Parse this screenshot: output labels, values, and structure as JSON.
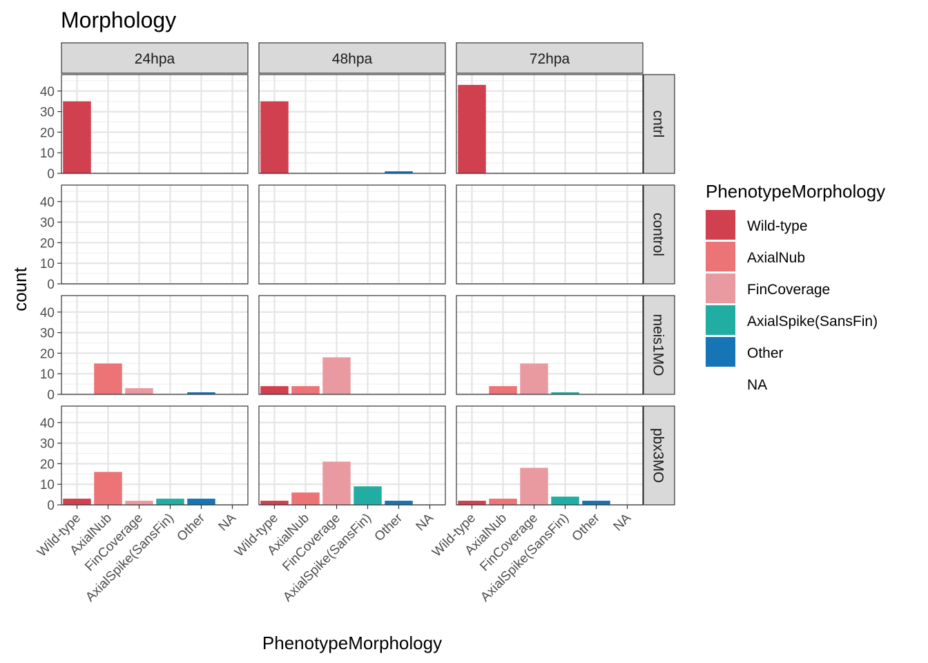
{
  "chart_data": {
    "type": "bar",
    "title": "Morphology",
    "xlabel": "PhenotypeMorphology",
    "ylabel": "count",
    "ylim": [
      0,
      48
    ],
    "yticks": [
      0,
      10,
      20,
      30,
      40
    ],
    "grid": true,
    "categories": [
      "Wild-type",
      "AxialNub",
      "FinCoverage",
      "AxialSpike(SansFin)",
      "Other",
      "NA"
    ],
    "column_facets": [
      "24hpa",
      "48hpa",
      "72hpa"
    ],
    "row_facets": [
      "cntrl",
      "control",
      "meis1MO",
      "pbx3MO"
    ],
    "colors": [
      "#d1404e",
      "#ec7376",
      "#e99aa0",
      "#22ada3",
      "#1575b5",
      "#ffffff"
    ],
    "legend": {
      "title": "PhenotypeMorphology",
      "position": "right",
      "items": [
        "Wild-type",
        "AxialNub",
        "FinCoverage",
        "AxialSpike(SansFin)",
        "Other",
        "NA"
      ]
    },
    "panels": [
      {
        "row": "cntrl",
        "col": "24hpa",
        "values": [
          35,
          0,
          0,
          0,
          0,
          0
        ]
      },
      {
        "row": "cntrl",
        "col": "48hpa",
        "values": [
          35,
          0,
          0,
          0,
          1,
          0
        ]
      },
      {
        "row": "cntrl",
        "col": "72hpa",
        "values": [
          43,
          0,
          0,
          0,
          0,
          0
        ]
      },
      {
        "row": "control",
        "col": "24hpa",
        "values": [
          0,
          0,
          0,
          0,
          0,
          0
        ]
      },
      {
        "row": "control",
        "col": "48hpa",
        "values": [
          0,
          0,
          0,
          0,
          0,
          0
        ]
      },
      {
        "row": "control",
        "col": "72hpa",
        "values": [
          0,
          0,
          0,
          0,
          0,
          0
        ]
      },
      {
        "row": "meis1MO",
        "col": "24hpa",
        "values": [
          0,
          15,
          3,
          0,
          1,
          0
        ]
      },
      {
        "row": "meis1MO",
        "col": "48hpa",
        "values": [
          4,
          4,
          18,
          0,
          0,
          0
        ]
      },
      {
        "row": "meis1MO",
        "col": "72hpa",
        "values": [
          0,
          4,
          15,
          1,
          0,
          0
        ]
      },
      {
        "row": "pbx3MO",
        "col": "24hpa",
        "values": [
          3,
          16,
          2,
          3,
          3,
          0
        ]
      },
      {
        "row": "pbx3MO",
        "col": "48hpa",
        "values": [
          2,
          6,
          21,
          9,
          2,
          0
        ]
      },
      {
        "row": "pbx3MO",
        "col": "72hpa",
        "values": [
          2,
          3,
          18,
          4,
          2,
          0
        ]
      }
    ]
  }
}
